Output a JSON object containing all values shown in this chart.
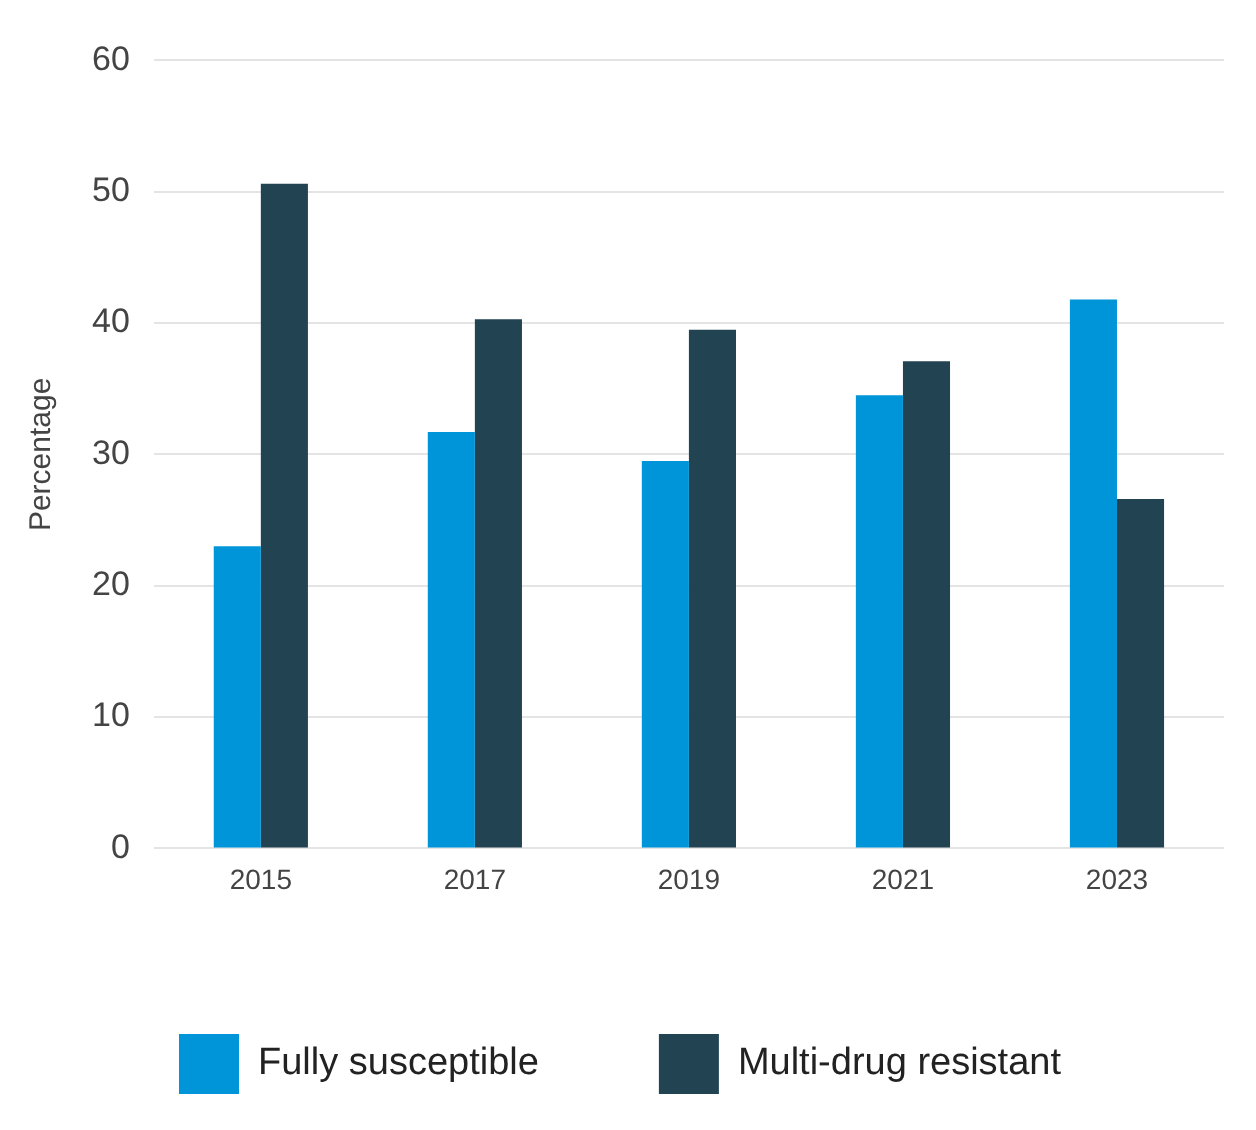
{
  "chart_data": {
    "type": "bar",
    "ylabel": "Percentage",
    "categories": [
      "2015",
      "2017",
      "2019",
      "2021",
      "2023"
    ],
    "series": [
      {
        "name": "Fully susceptible",
        "color": "#0095d9",
        "values": [
          23.0,
          31.7,
          29.5,
          34.5,
          41.8
        ]
      },
      {
        "name": "Multi-drug resistant",
        "color": "#214352",
        "values": [
          50.6,
          40.3,
          39.5,
          37.1,
          26.6
        ]
      }
    ],
    "ylim": [
      0,
      60
    ],
    "yticks": [
      0,
      10,
      20,
      30,
      40,
      50,
      60
    ],
    "grid": "y",
    "legend": "bottom"
  }
}
